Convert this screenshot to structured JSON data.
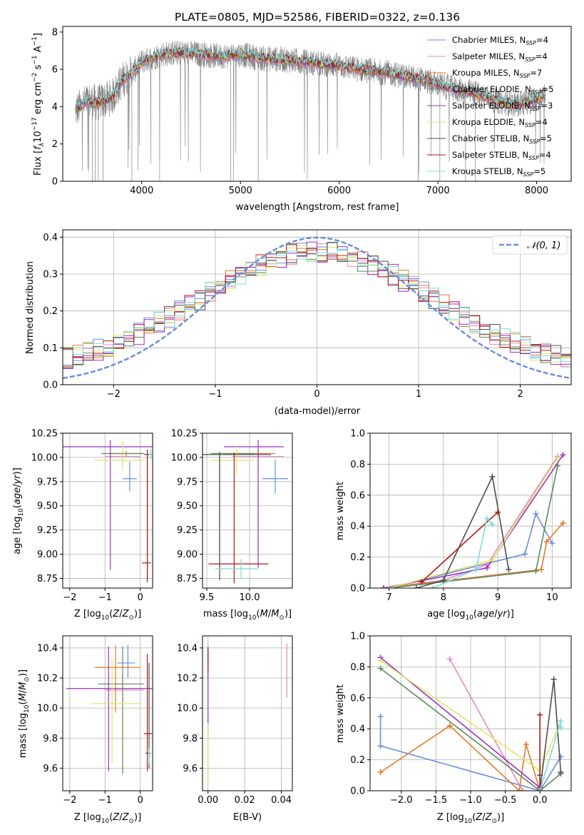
{
  "title": "PLATE=0805, MJD=52586, FIBERID=0322, z=0.136",
  "colors": {
    "palette": [
      "#6a8fdb",
      "#e88ab9",
      "#e07b2a",
      "#5e8a5e",
      "#9b30c0",
      "#d8e86a",
      "#4f4f4f",
      "#b01818",
      "#7fdada"
    ],
    "data": "#808080",
    "gauss": "#6a8fdb",
    "grid": "#b0b0b0"
  },
  "chart_data": [
    {
      "id": "spectrum",
      "type": "line",
      "title": "PLATE=0805, MJD=52586, FIBERID=0322, z=0.136",
      "xlabel": "wavelength [Angstrom, rest frame]",
      "ylabel": "Flux [f_λ 10^-17 erg cm^-2 s^-1 A^-1]",
      "ylabel_parts": {
        "a": "Flux [",
        "b": "f",
        "c": "λ",
        "d": "10",
        "e": "−17",
        "f": " erg cm",
        "g": "−2",
        "h": " s",
        "i": "−1",
        "j": " A",
        "k": "−1",
        "l": "]"
      },
      "xlim": [
        3200,
        8350
      ],
      "ylim": [
        0,
        8.3
      ],
      "xticks": [
        4000,
        5000,
        6000,
        7000,
        8000
      ],
      "yticks": [
        0,
        2,
        4,
        6,
        8
      ],
      "grid": false,
      "legend_position": "upper right",
      "series": [
        {
          "name": "Chabrier MILES, N_SSP=4",
          "label": "Chabrier MILES, N",
          "sub": "SSP",
          "eq": "=4"
        },
        {
          "name": "Salpeter MILES, N_SSP=4",
          "label": "Salpeter MILES, N",
          "sub": "SSP",
          "eq": "=4"
        },
        {
          "name": "Kroupa MILES, N_SSP=7",
          "label": "Kroupa MILES, N",
          "sub": "SSP",
          "eq": "=7"
        },
        {
          "name": "Chabrier ELODIE, N_SSP=5",
          "label": "Chabrier ELODIE, N",
          "sub": "SSP",
          "eq": "=5"
        },
        {
          "name": "Salpeter ELODIE, N_SSP=3",
          "label": "Salpeter ELODIE, N",
          "sub": "SSP",
          "eq": "=3"
        },
        {
          "name": "Kroupa ELODIE, N_SSP=4",
          "label": "Kroupa ELODIE, N",
          "sub": "SSP",
          "eq": "=4"
        },
        {
          "name": "Chabrier STELIB, N_SSP=5",
          "label": "Chabrier STELIB, N",
          "sub": "SSP",
          "eq": "=5"
        },
        {
          "name": "Salpeter STELIB, N_SSP=4",
          "label": "Salpeter STELIB, N",
          "sub": "SSP",
          "eq": "=4"
        },
        {
          "name": "Kroupa STELIB, N_SSP=5",
          "label": "Kroupa STELIB, N",
          "sub": "SSP",
          "eq": "=5"
        }
      ],
      "model_continuum": {
        "x": [
          3330,
          3450,
          3550,
          3700,
          3800,
          3900,
          4000,
          4100,
          4200,
          4400,
          4600,
          4800,
          5000,
          5200,
          5500,
          5800,
          6000,
          6200,
          6500,
          6800,
          7000,
          7200,
          7400,
          7600,
          7800,
          8000,
          8100
        ],
        "y": [
          3.8,
          4.3,
          4.2,
          4.5,
          5.4,
          5.8,
          6.4,
          6.6,
          6.8,
          6.9,
          6.8,
          6.7,
          6.8,
          6.6,
          6.5,
          6.3,
          6.2,
          6.0,
          5.8,
          5.5,
          5.2,
          4.9,
          4.7,
          4.3,
          4.1,
          4.4,
          4.7
        ]
      }
    },
    {
      "id": "residuals",
      "type": "area",
      "xlabel": "(data-model)/error",
      "ylabel": "Normed distribution",
      "xlim": [
        -2.5,
        2.5
      ],
      "ylim": [
        0,
        0.42
      ],
      "xticks": [
        -2,
        -1,
        0,
        1,
        2
      ],
      "yticks": [
        0.0,
        0.1,
        0.2,
        0.3,
        0.4
      ],
      "grid": true,
      "legend_position": "upper right",
      "gauss_label": "𝒩(0, 1)",
      "histogram": "step histograms of normalized residuals for the nine model fits, bin width 0.1"
    },
    {
      "id": "age_vs_Z",
      "type": "scatter",
      "xlabel": "Z [log10(Z/Z⊙)]",
      "ylabel": "age [log10(age/yr)]",
      "xlim": [
        -2.2,
        0.35
      ],
      "ylim": [
        8.65,
        10.25
      ],
      "xticks": [
        -2,
        -1,
        0
      ],
      "yticks": [
        8.75,
        9.0,
        9.25,
        9.5,
        9.75,
        10.0,
        10.25
      ],
      "grid": true,
      "points": [
        {
          "series": 0,
          "x": -0.3,
          "y": 9.78,
          "xerr": [
            0.2,
            0.2
          ],
          "yerr": [
            0.13,
            0.18
          ]
        },
        {
          "series": 1,
          "x": -0.5,
          "y": 10.01,
          "xerr": [
            0.5,
            0.5
          ],
          "yerr": [
            0.06,
            0.06
          ]
        },
        {
          "series": 2,
          "x": -0.4,
          "y": 10.04,
          "xerr": [
            0.5,
            0.5
          ],
          "yerr": [
            0.03,
            0.03
          ]
        },
        {
          "series": 3,
          "x": -0.5,
          "y": 10.04,
          "xerr": [
            0.6,
            0.6
          ],
          "yerr": [
            0.02,
            0.02
          ]
        },
        {
          "series": 4,
          "x": -0.85,
          "y": 10.11,
          "xerr": [
            1.35,
            1.6
          ],
          "yerr": [
            1.27,
            0.07
          ]
        },
        {
          "series": 5,
          "x": -0.5,
          "y": 9.97,
          "xerr": [
            0.8,
            0.6
          ],
          "yerr": [
            0.1,
            0.2
          ]
        },
        {
          "series": 6,
          "x": 0.2,
          "y": 10.03,
          "xerr": [
            0.1,
            0.1
          ],
          "yerr": [
            1.3,
            0.05
          ]
        },
        {
          "series": 7,
          "x": 0.2,
          "y": 8.91,
          "xerr": [
            0.15,
            0.1
          ],
          "yerr": [
            0.2,
            1.15
          ]
        },
        {
          "series": 8,
          "x": 0.3,
          "y": 10.03,
          "xerr": [
            0.05,
            0.05
          ],
          "yerr": [
            0.05,
            0.05
          ]
        }
      ]
    },
    {
      "id": "age_vs_mass",
      "type": "scatter",
      "xlabel": "mass [log10(M/M⊙)]",
      "ylabel": "",
      "xlim": [
        9.45,
        10.5
      ],
      "ylim": [
        8.65,
        10.25
      ],
      "xticks": [
        9.5,
        10.0
      ],
      "yticks": [
        8.75,
        9.0,
        9.25,
        9.5,
        9.75,
        10.0,
        10.25
      ],
      "grid": true,
      "points": [
        {
          "series": 0,
          "x": 10.3,
          "y": 9.78,
          "xerr": [
            0.15,
            0.15
          ],
          "yerr": [
            0.15,
            0.2
          ]
        },
        {
          "series": 1,
          "x": 10.1,
          "y": 10.01,
          "xerr": [
            0.3,
            0.3
          ],
          "yerr": [
            0.05,
            0.05
          ]
        },
        {
          "series": 2,
          "x": 10.1,
          "y": 10.04,
          "xerr": [
            0.4,
            0.2
          ],
          "yerr": [
            0.03,
            0.03
          ]
        },
        {
          "series": 3,
          "x": 9.65,
          "y": 10.04,
          "xerr": [
            0.1,
            0.4
          ],
          "yerr": [
            1.2,
            0.02
          ]
        },
        {
          "series": 4,
          "x": 10.1,
          "y": 10.11,
          "xerr": [
            0.4,
            0.3
          ],
          "yerr": [
            1.25,
            0.07
          ]
        },
        {
          "series": 5,
          "x": 9.85,
          "y": 9.97,
          "xerr": [
            0.3,
            0.2
          ],
          "yerr": [
            0.15,
            0.15
          ]
        },
        {
          "series": 6,
          "x": 9.65,
          "y": 10.03,
          "xerr": [
            0.2,
            0.6
          ],
          "yerr": [
            1.3,
            0.02
          ]
        },
        {
          "series": 7,
          "x": 9.82,
          "y": 8.9,
          "xerr": [
            0.3,
            0.4
          ],
          "yerr": [
            0.2,
            1.15
          ]
        },
        {
          "series": 8,
          "x": 9.9,
          "y": 8.85,
          "xerr": [
            0.3,
            0.2
          ],
          "yerr": [
            0.1,
            0.1
          ]
        }
      ]
    },
    {
      "id": "mass_weight_vs_age",
      "type": "line",
      "xlabel": "age [log10(age/yr)]",
      "ylabel": "mass weight",
      "xlim": [
        6.65,
        10.35
      ],
      "ylim": [
        0,
        1.0
      ],
      "xticks": [
        7,
        8,
        9,
        10
      ],
      "yticks": [
        0.0,
        0.2,
        0.4,
        0.6,
        0.8,
        1.0
      ],
      "grid": true,
      "series": [
        {
          "series": 0,
          "x": [
            7.0,
            9.5,
            9.7,
            10.0
          ],
          "y": [
            0.0,
            0.22,
            0.48,
            0.29
          ]
        },
        {
          "series": 1,
          "x": [
            6.9,
            8.0,
            8.8,
            10.1
          ],
          "y": [
            0.0,
            0.05,
            0.15,
            0.85
          ]
        },
        {
          "series": 2,
          "x": [
            6.9,
            9.8,
            9.9,
            10.2
          ],
          "y": [
            0.0,
            0.12,
            0.3,
            0.42
          ]
        },
        {
          "series": 3,
          "x": [
            7.0,
            9.7,
            10.1
          ],
          "y": [
            0.0,
            0.11,
            0.79
          ]
        },
        {
          "series": 4,
          "x": [
            6.9,
            8.8,
            10.2
          ],
          "y": [
            0.0,
            0.13,
            0.86
          ]
        },
        {
          "series": 5,
          "x": [
            7.0,
            8.9,
            10.1
          ],
          "y": [
            0.0,
            0.18,
            0.84
          ]
        },
        {
          "series": 6,
          "x": [
            7.5,
            8.0,
            8.9,
            9.2
          ],
          "y": [
            0.0,
            0.05,
            0.72,
            0.12
          ]
        },
        {
          "series": 7,
          "x": [
            7.6,
            9.0
          ],
          "y": [
            0.04,
            0.49
          ]
        },
        {
          "series": 8,
          "x": [
            7.8,
            8.6,
            8.8,
            8.9
          ],
          "y": [
            0.0,
            0.12,
            0.45,
            0.41
          ]
        }
      ]
    },
    {
      "id": "mass_vs_Z",
      "type": "scatter",
      "xlabel": "Z [log10(Z/Z⊙)]",
      "ylabel": "mass [log10(M/M⊙)]",
      "xlim": [
        -2.2,
        0.35
      ],
      "ylim": [
        9.45,
        10.48
      ],
      "xticks": [
        -2,
        -1,
        0
      ],
      "yticks": [
        9.6,
        9.8,
        10.0,
        10.2,
        10.4
      ],
      "grid": true,
      "points": [
        {
          "series": 0,
          "x": -0.35,
          "y": 10.3,
          "xerr": [
            0.3,
            0.2
          ],
          "yerr": [
            0.1,
            0.12
          ]
        },
        {
          "series": 1,
          "x": -0.5,
          "y": 10.12,
          "xerr": [
            0.5,
            0.6
          ],
          "yerr": [
            0.1,
            0.1
          ]
        },
        {
          "series": 2,
          "x": -0.7,
          "y": 10.27,
          "xerr": [
            0.6,
            0.7
          ],
          "yerr": [
            0.3,
            0.15
          ]
        },
        {
          "series": 3,
          "x": -0.5,
          "y": 10.16,
          "xerr": [
            0.7,
            0.6
          ],
          "yerr": [
            0.6,
            0.25
          ]
        },
        {
          "series": 4,
          "x": -0.9,
          "y": 10.13,
          "xerr": [
            1.2,
            1.3
          ],
          "yerr": [
            0.55,
            0.28
          ]
        },
        {
          "series": 5,
          "x": -0.8,
          "y": 10.03,
          "xerr": [
            0.6,
            0.8
          ],
          "yerr": [
            0.4,
            0.3
          ]
        },
        {
          "series": 6,
          "x": 0.25,
          "y": 9.7,
          "xerr": [
            0.1,
            0.05
          ],
          "yerr": [
            0.1,
            0.6
          ]
        },
        {
          "series": 7,
          "x": 0.2,
          "y": 9.83,
          "xerr": [
            0.1,
            0.15
          ],
          "yerr": [
            0.25,
            0.53
          ]
        },
        {
          "series": 8,
          "x": 0.25,
          "y": 9.68,
          "xerr": [
            0.05,
            0.05
          ],
          "yerr": [
            0.05,
            0.05
          ]
        }
      ]
    },
    {
      "id": "mass_vs_EBV",
      "type": "scatter",
      "xlabel": "E(B-V)",
      "ylabel": "",
      "xlim": [
        -0.003,
        0.046
      ],
      "ylim": [
        9.45,
        10.48
      ],
      "xticks": [
        0.0,
        0.02,
        0.04
      ],
      "yticks": [
        9.6,
        9.8,
        10.0,
        10.2,
        10.4
      ],
      "grid": true,
      "points": [
        {
          "series": 0,
          "x": 0.0,
          "y": 10.3,
          "xerr": [
            0.0,
            0.0
          ],
          "yerr": [
            0.1,
            0.1
          ]
        },
        {
          "series": 1,
          "x": 0.043,
          "y": 10.25,
          "xerr": [
            0.0,
            0.0
          ],
          "yerr": [
            0.18,
            0.18
          ]
        },
        {
          "series": 4,
          "x": 0.0,
          "y": 10.13,
          "xerr": [
            0.0,
            0.0
          ],
          "yerr": [
            0.3,
            0.28
          ]
        },
        {
          "series": 5,
          "x": 0.0,
          "y": 9.75,
          "xerr": [
            0.0,
            0.0
          ],
          "yerr": [
            0.25,
            0.15
          ]
        },
        {
          "series": 7,
          "x": 0.0,
          "y": 10.35,
          "xerr": [
            0.0,
            0.0
          ],
          "yerr": [
            0.1,
            0.05
          ]
        }
      ]
    },
    {
      "id": "mass_weight_vs_Z",
      "type": "line",
      "xlabel": "Z [log10(Z/Z⊙)]",
      "ylabel": "mass weight",
      "xlim": [
        -2.45,
        0.45
      ],
      "ylim": [
        0,
        1.0
      ],
      "xticks": [
        -2.0,
        -1.5,
        -1.0,
        -0.5,
        0.0
      ],
      "yticks": [
        0.0,
        0.2,
        0.4,
        0.6,
        0.8,
        1.0
      ],
      "grid": true,
      "series": [
        {
          "series": 0,
          "x": [
            -2.3,
            -2.3,
            0.0,
            0.3
          ],
          "y": [
            0.48,
            0.29,
            0.0,
            0.22
          ]
        },
        {
          "series": 1,
          "x": [
            -1.3,
            -0.25
          ],
          "y": [
            0.85,
            0.0
          ]
        },
        {
          "series": 2,
          "x": [
            -2.3,
            -1.3,
            -0.3,
            -0.2,
            0.0
          ],
          "y": [
            0.12,
            0.42,
            0.0,
            0.3,
            0.0
          ]
        },
        {
          "series": 3,
          "x": [
            -2.3,
            0.0,
            0.3
          ],
          "y": [
            0.79,
            0.0,
            0.11
          ]
        },
        {
          "series": 4,
          "x": [
            -2.3,
            0.0
          ],
          "y": [
            0.86,
            0.02
          ]
        },
        {
          "series": 5,
          "x": [
            -2.3,
            0.0,
            0.3
          ],
          "y": [
            0.84,
            0.13,
            0.45
          ]
        },
        {
          "series": 6,
          "x": [
            0.0,
            0.0,
            0.2,
            0.3
          ],
          "y": [
            0.1,
            0.0,
            0.72,
            0.12
          ]
        },
        {
          "series": 7,
          "x": [
            0.0,
            0.0
          ],
          "y": [
            0.49,
            0.0
          ]
        },
        {
          "series": 8,
          "x": [
            0.0,
            0.3,
            0.3
          ],
          "y": [
            0.0,
            0.45,
            0.41
          ]
        }
      ]
    }
  ]
}
